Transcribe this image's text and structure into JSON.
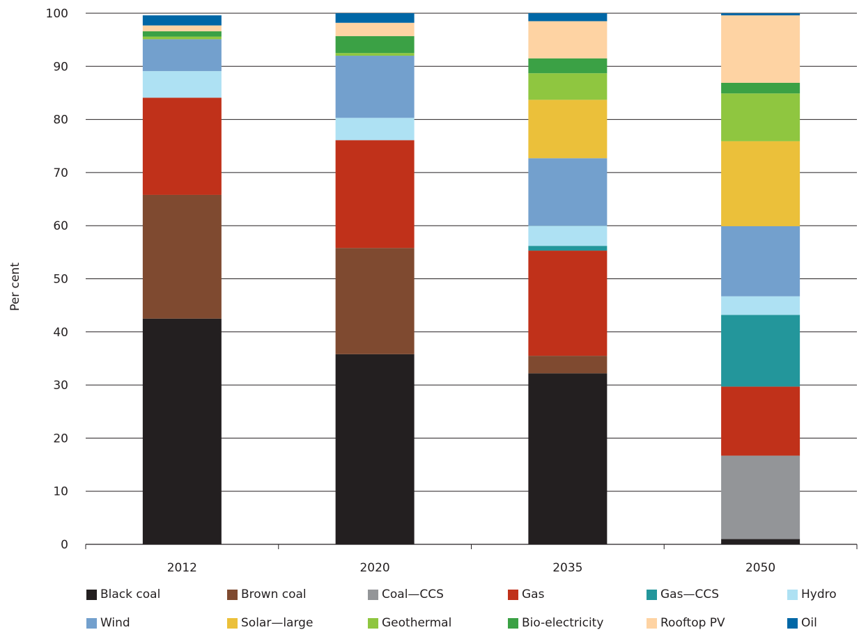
{
  "chart_data": {
    "type": "bar",
    "stacked": true,
    "ylabel": "Per cent",
    "xlabel": "",
    "title": "",
    "ylim": [
      0,
      100
    ],
    "yticks": [
      0,
      10,
      20,
      30,
      40,
      50,
      60,
      70,
      80,
      90,
      100
    ],
    "grid": "horizontal",
    "legend_position": "bottom",
    "categories": [
      "2012",
      "2020",
      "2035",
      "2050"
    ],
    "series": [
      {
        "name": "Black coal",
        "color": "#231f20",
        "values": [
          42.5,
          35.8,
          32.2,
          1.0
        ]
      },
      {
        "name": "Brown coal",
        "color": "#7f4a30",
        "values": [
          23.3,
          20.0,
          3.3,
          0.0
        ]
      },
      {
        "name": "Coal—CCS",
        "color": "#939598",
        "values": [
          0.0,
          0.0,
          0.0,
          15.7
        ]
      },
      {
        "name": "Gas",
        "color": "#c0311a",
        "values": [
          18.3,
          20.3,
          19.8,
          13.0
        ]
      },
      {
        "name": "Gas—CCS",
        "color": "#23969b",
        "values": [
          0.0,
          0.0,
          0.9,
          13.5
        ]
      },
      {
        "name": "Hydro",
        "color": "#aee1f3",
        "values": [
          5.0,
          4.2,
          3.8,
          3.5
        ]
      },
      {
        "name": "Wind",
        "color": "#73a0cd",
        "values": [
          6.0,
          11.7,
          12.7,
          13.2
        ]
      },
      {
        "name": "Solar—large",
        "color": "#ebc03a",
        "values": [
          0.0,
          0.0,
          11.0,
          16.0
        ]
      },
      {
        "name": "Geothermal",
        "color": "#8fc640",
        "values": [
          0.5,
          0.5,
          5.0,
          9.0
        ]
      },
      {
        "name": "Bio-electricity",
        "color": "#3ba145",
        "values": [
          1.0,
          3.2,
          2.8,
          2.0
        ]
      },
      {
        "name": "Rooftop PV",
        "color": "#fed3a3",
        "values": [
          1.1,
          2.5,
          7.0,
          12.7
        ]
      },
      {
        "name": "Oil",
        "color": "#0067a6",
        "values": [
          1.9,
          1.8,
          1.5,
          0.4
        ]
      }
    ]
  }
}
